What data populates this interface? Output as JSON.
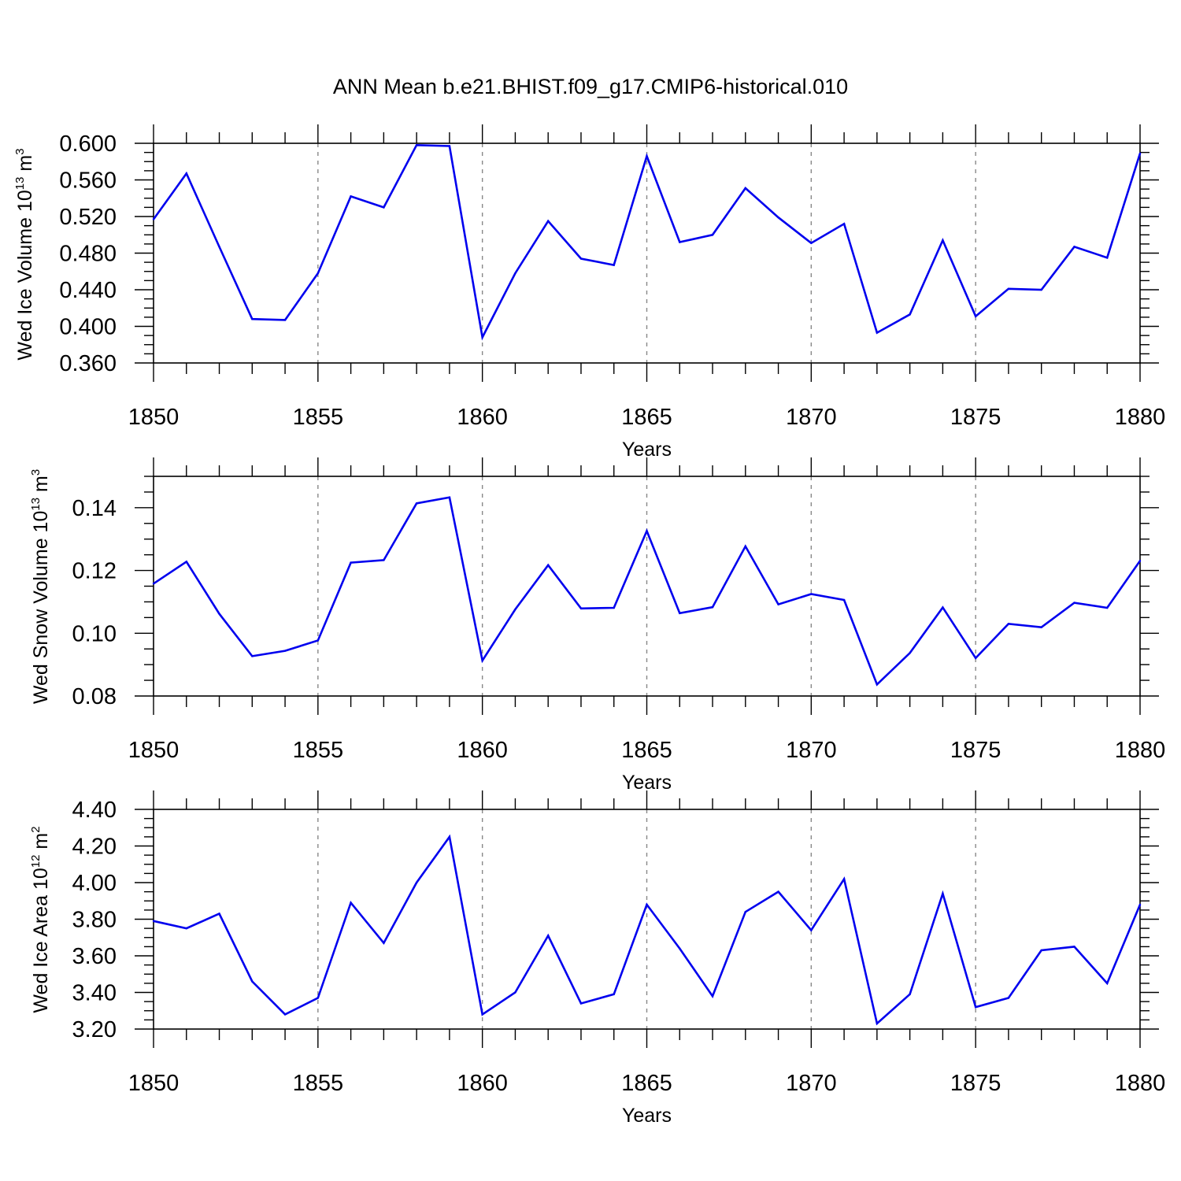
{
  "title": "ANN Mean b.e21.BHIST.f09_g17.CMIP6-historical.010",
  "colors": {
    "line": "#0000ee",
    "axis": "#000000",
    "grid": "#888888"
  },
  "chart_data": [
    {
      "type": "line",
      "xlabel": "Years",
      "ylabel": {
        "prefix": "Wed Ice Volume 10",
        "exp": "13",
        "unit": " m",
        "unit_exp": "3"
      },
      "xlim": [
        1850,
        1880
      ],
      "ylim": [
        0.36,
        0.6
      ],
      "x_ticks": [
        "1850",
        "1855",
        "1860",
        "1865",
        "1870",
        "1875",
        "1880"
      ],
      "y_ticks": [
        "0.360",
        "0.400",
        "0.440",
        "0.480",
        "0.520",
        "0.560",
        "0.600"
      ],
      "grid": "vertical dashed at major x ticks",
      "x": [
        1850,
        1851,
        1852,
        1853,
        1854,
        1855,
        1856,
        1857,
        1858,
        1859,
        1860,
        1861,
        1862,
        1863,
        1864,
        1865,
        1866,
        1867,
        1868,
        1869,
        1870,
        1871,
        1872,
        1873,
        1874,
        1875,
        1876,
        1877,
        1878,
        1879,
        1880
      ],
      "values": [
        0.517,
        0.567,
        0.487,
        0.408,
        0.407,
        0.458,
        0.542,
        0.53,
        0.598,
        0.597,
        0.388,
        0.458,
        0.515,
        0.474,
        0.467,
        0.586,
        0.492,
        0.5,
        0.551,
        0.519,
        0.491,
        0.512,
        0.393,
        0.413,
        0.494,
        0.411,
        0.441,
        0.44,
        0.487,
        0.475,
        0.589
      ]
    },
    {
      "type": "line",
      "xlabel": "Years",
      "ylabel": {
        "prefix": "Wed Snow Volume 10",
        "exp": "13",
        "unit": " m",
        "unit_exp": "3"
      },
      "xlim": [
        1850,
        1880
      ],
      "ylim": [
        0.08,
        0.15
      ],
      "x_ticks": [
        "1850",
        "1855",
        "1860",
        "1865",
        "1870",
        "1875",
        "1880"
      ],
      "y_ticks": [
        "0.08",
        "0.10",
        "0.12",
        "0.14"
      ],
      "grid": "vertical dashed at major x ticks",
      "x": [
        1850,
        1851,
        1852,
        1853,
        1854,
        1855,
        1856,
        1857,
        1858,
        1859,
        1860,
        1861,
        1862,
        1863,
        1864,
        1865,
        1866,
        1867,
        1868,
        1869,
        1870,
        1871,
        1872,
        1873,
        1874,
        1875,
        1876,
        1877,
        1878,
        1879,
        1880
      ],
      "values": [
        0.1158,
        0.1228,
        0.1062,
        0.0927,
        0.0944,
        0.0977,
        0.1225,
        0.1233,
        0.1414,
        0.1433,
        0.0913,
        0.1076,
        0.1217,
        0.1079,
        0.1081,
        0.1326,
        0.1064,
        0.1083,
        0.1277,
        0.1092,
        0.1125,
        0.1106,
        0.0837,
        0.0937,
        0.1082,
        0.0921,
        0.103,
        0.1019,
        0.1097,
        0.1081,
        0.1231
      ]
    },
    {
      "type": "line",
      "xlabel": "Years",
      "ylabel": {
        "prefix": "Wed Ice Area 10",
        "exp": "12",
        "unit": " m",
        "unit_exp": "2"
      },
      "xlim": [
        1850,
        1880
      ],
      "ylim": [
        3.2,
        4.4
      ],
      "x_ticks": [
        "1850",
        "1855",
        "1860",
        "1865",
        "1870",
        "1875",
        "1880"
      ],
      "y_ticks": [
        "3.20",
        "3.40",
        "3.60",
        "3.80",
        "4.00",
        "4.20",
        "4.40"
      ],
      "grid": "vertical dashed at major x ticks",
      "x": [
        1850,
        1851,
        1852,
        1853,
        1854,
        1855,
        1856,
        1857,
        1858,
        1859,
        1860,
        1861,
        1862,
        1863,
        1864,
        1865,
        1866,
        1867,
        1868,
        1869,
        1870,
        1871,
        1872,
        1873,
        1874,
        1875,
        1876,
        1877,
        1878,
        1879,
        1880
      ],
      "values": [
        3.79,
        3.75,
        3.83,
        3.46,
        3.28,
        3.37,
        3.89,
        3.67,
        4.0,
        4.25,
        3.28,
        3.4,
        3.71,
        3.34,
        3.39,
        3.88,
        3.64,
        3.38,
        3.84,
        3.95,
        3.74,
        4.02,
        3.23,
        3.39,
        3.94,
        3.32,
        3.37,
        3.63,
        3.65,
        3.45,
        3.88
      ]
    }
  ]
}
